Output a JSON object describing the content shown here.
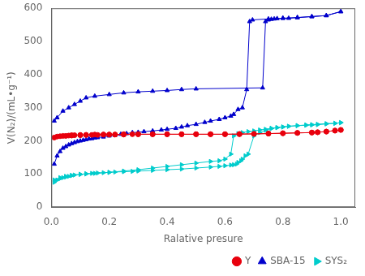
{
  "chart_data": {
    "type": "line",
    "xlabel": "Ralative presure",
    "ylabel": "V(N₂)/(mL•g⁻¹)",
    "xlim": [
      0,
      1.05
    ],
    "ylim": [
      0,
      600
    ],
    "xticks": [
      {
        "value": 0.0,
        "label": "0.0"
      },
      0.2,
      0.4,
      0.6,
      0.8,
      {
        "value": 1.0,
        "label": "1.0"
      }
    ],
    "yticks": [
      0,
      100,
      200,
      300,
      400,
      500,
      600
    ],
    "grid": false,
    "legend": "lower right",
    "series": [
      {
        "name": "Y",
        "color": "#e8000d",
        "marker": "circle",
        "line_style": "solid",
        "x": [
          0.01,
          0.02,
          0.03,
          0.04,
          0.05,
          0.06,
          0.07,
          0.08,
          0.1,
          0.12,
          0.14,
          0.16,
          0.18,
          0.2,
          0.22,
          0.25,
          0.28,
          0.3,
          0.35,
          0.4,
          0.45,
          0.5,
          0.55,
          0.6,
          0.65,
          0.7,
          0.75,
          0.8,
          0.85,
          0.9,
          0.92,
          0.95,
          0.98,
          1.0
        ],
        "values": [
          210,
          213,
          214,
          215,
          215,
          216,
          216,
          217,
          217,
          218,
          218,
          218,
          219,
          219,
          219,
          219,
          220,
          220,
          220,
          220,
          220,
          220,
          220,
          220,
          220,
          221,
          222,
          223,
          224,
          225,
          226,
          228,
          231,
          233
        ]
      },
      {
        "color": "#e8000d",
        "marker": "circle",
        "line_style": "solid",
        "x": [
          1.0,
          0.98,
          0.95,
          0.92,
          0.9,
          0.85,
          0.8,
          0.75,
          0.7,
          0.65,
          0.6,
          0.55,
          0.5,
          0.45,
          0.4,
          0.35,
          0.3,
          0.25,
          0.22,
          0.2,
          0.18,
          0.15,
          0.12,
          0.1,
          0.07
        ],
        "values": [
          233,
          231,
          228,
          226,
          225,
          224,
          223,
          222,
          221,
          221,
          220,
          220,
          220,
          220,
          220,
          220,
          220,
          220,
          219,
          219,
          219,
          219,
          218,
          218,
          217
        ]
      },
      {
        "name": "SBA-15",
        "color": "#0000cc",
        "marker": "triangle-up",
        "line_style": "solid",
        "x": [
          0.01,
          0.02,
          0.03,
          0.04,
          0.05,
          0.06,
          0.07,
          0.08,
          0.09,
          0.1,
          0.11,
          0.12,
          0.13,
          0.14,
          0.15,
          0.16,
          0.18,
          0.2,
          0.22,
          0.24,
          0.26,
          0.28,
          0.3,
          0.32,
          0.35,
          0.38,
          0.4,
          0.43,
          0.45,
          0.47,
          0.5,
          0.53,
          0.55,
          0.58,
          0.6,
          0.62,
          0.63,
          0.645,
          0.66,
          0.675,
          0.685,
          0.695,
          0.75,
          0.8,
          0.85,
          0.9,
          0.95,
          1.0
        ],
        "values": [
          130,
          155,
          168,
          178,
          183,
          188,
          192,
          195,
          198,
          200,
          202,
          204,
          206,
          207,
          209,
          210,
          212,
          215,
          217,
          220,
          222,
          225,
          226,
          228,
          230,
          233,
          235,
          238,
          242,
          246,
          250,
          256,
          260,
          265,
          270,
          275,
          280,
          295,
          300,
          355,
          560,
          565,
          568,
          570,
          572,
          575,
          578,
          590
        ]
      },
      {
        "color": "#0000cc",
        "marker": "triangle-up",
        "line_style": "solid",
        "x": [
          1.0,
          0.95,
          0.9,
          0.85,
          0.82,
          0.8,
          0.78,
          0.77,
          0.76,
          0.75,
          0.74,
          0.73,
          0.5,
          0.45,
          0.4,
          0.35,
          0.3,
          0.25,
          0.2,
          0.15,
          0.12,
          0.1,
          0.08,
          0.06,
          0.04,
          0.02,
          0.01
        ],
        "values": [
          590,
          578,
          575,
          572,
          570,
          570,
          569,
          568,
          567,
          565,
          560,
          360,
          357,
          355,
          352,
          350,
          348,
          345,
          340,
          335,
          330,
          320,
          310,
          300,
          290,
          270,
          260
        ]
      },
      {
        "name": "SYS₂",
        "color": "#00cccc",
        "marker": "triangle-right",
        "line_style": "solid",
        "x": [
          0.01,
          0.02,
          0.03,
          0.04,
          0.05,
          0.06,
          0.07,
          0.08,
          0.1,
          0.12,
          0.14,
          0.16,
          0.18,
          0.2,
          0.22,
          0.25,
          0.28,
          0.3,
          0.35,
          0.4,
          0.45,
          0.5,
          0.55,
          0.58,
          0.6,
          0.62,
          0.63,
          0.64,
          0.645,
          0.655,
          0.66,
          0.67,
          0.68,
          0.7,
          0.72,
          0.74,
          0.76,
          0.78,
          0.8,
          0.82,
          0.85,
          0.88,
          0.9,
          0.92,
          0.95,
          0.98,
          1.0
        ],
        "values": [
          75,
          82,
          86,
          89,
          91,
          93,
          95,
          97,
          99,
          101,
          102,
          103,
          104,
          105,
          106,
          107,
          108,
          109,
          111,
          113,
          115,
          118,
          121,
          123,
          125,
          127,
          128,
          130,
          135,
          140,
          145,
          155,
          160,
          215,
          225,
          232,
          237,
          240,
          242,
          244,
          246,
          248,
          249,
          250,
          252,
          253,
          255
        ]
      },
      {
        "color": "#00cccc",
        "marker": "triangle-right",
        "line_style": "solid",
        "x": [
          1.0,
          0.98,
          0.95,
          0.92,
          0.9,
          0.88,
          0.85,
          0.82,
          0.8,
          0.78,
          0.76,
          0.74,
          0.72,
          0.7,
          0.68,
          0.66,
          0.645,
          0.63,
          0.62,
          0.6,
          0.58,
          0.55,
          0.5,
          0.45,
          0.4,
          0.35,
          0.3,
          0.25,
          0.2,
          0.15,
          0.12,
          0.1,
          0.07,
          0.05,
          0.03,
          0.01
        ],
        "values": [
          255,
          253,
          251,
          249,
          248,
          247,
          246,
          244,
          242,
          240,
          238,
          235,
          233,
          230,
          228,
          225,
          222,
          215,
          160,
          145,
          140,
          138,
          133,
          128,
          123,
          118,
          113,
          109,
          105,
          102,
          100,
          99,
          96,
          93,
          89,
          82
        ]
      }
    ]
  }
}
